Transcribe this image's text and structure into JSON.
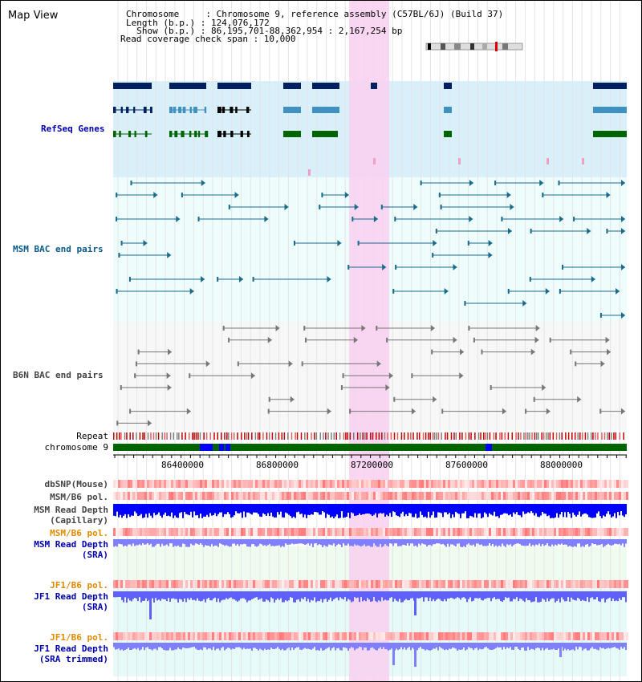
{
  "window_title": "Map View",
  "info": {
    "chromosome_line": "Chromosome     : Chromosome 9, reference assembly (C57BL/6J) (Build 37)",
    "length_line": "Length (b.p.) : 124,076,172",
    "show_line": "  Show (b.p.) : 86,195,701-88,362,954 : 2,167,254 bp",
    "coverage_line": "Read coverage check span : 10,000"
  },
  "tracks": {
    "refseq": "RefSeq Genes",
    "msm_bac": "MSM BAC end pairs",
    "b6n_bac": "B6N BAC end pairs",
    "repeat": "Repeat",
    "chromosome": "chromosome 9",
    "dbsnp": "dbSNP(Mouse)",
    "msm_b6_pol_1": "MSM/B6 pol.",
    "msm_read_depth_cap_1": "MSM Read Depth",
    "msm_read_depth_cap_2": "(Capillary)",
    "msm_b6_pol_2": "MSM/B6 pol.",
    "msm_read_depth_sra_1": "MSM Read Depth",
    "msm_read_depth_sra_2": "(SRA)",
    "jf1_b6_pol_1": "JF1/B6 pol.",
    "jf1_read_depth_sra_1": "JF1 Read Depth",
    "jf1_read_depth_sra_2": "(SRA)",
    "jf1_b6_pol_2": "JF1/B6 pol.",
    "jf1_read_depth_trim_1": "JF1 Read Depth",
    "jf1_read_depth_trim_2": "(SRA trimmed)"
  },
  "axis": {
    "ticks": [
      "86400000",
      "86800000",
      "87200000",
      "87600000",
      "88000000"
    ]
  },
  "colors": {
    "refseq_label": "#0000aa",
    "msm_label": "#0a5a8a",
    "b6n_label": "#333333",
    "orange_label": "#e08a00",
    "blue_label": "#0000aa",
    "highlight": "#f8d0f0",
    "chromosome_bar": "#006400",
    "read_depth": "#0000ff"
  }
}
